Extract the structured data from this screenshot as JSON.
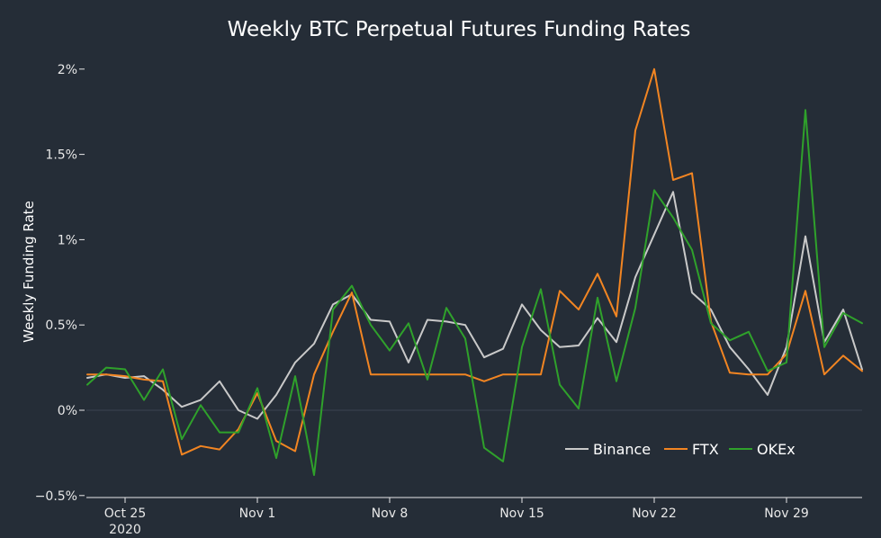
{
  "chart_data": {
    "type": "line",
    "title": "Weekly BTC Perpetual Futures Funding Rates",
    "xlabel": "",
    "ylabel": "Weekly Funding Rate",
    "ylim": [
      -0.5,
      2.0
    ],
    "y_ticks": [
      -0.5,
      0,
      0.5,
      1,
      1.5,
      2
    ],
    "y_tick_labels": [
      "−0.5%",
      "0%",
      "0.5%",
      "1%",
      "1.5%",
      "2%"
    ],
    "x_start": "2020-10-23",
    "x_step_days": 1,
    "x_ticks": [
      {
        "date": "2020-10-25",
        "label": "Oct 25",
        "sub": "2020"
      },
      {
        "date": "2020-11-01",
        "label": "Nov 1",
        "sub": ""
      },
      {
        "date": "2020-11-08",
        "label": "Nov 8",
        "sub": ""
      },
      {
        "date": "2020-11-15",
        "label": "Nov 15",
        "sub": ""
      },
      {
        "date": "2020-11-22",
        "label": "Nov 22",
        "sub": ""
      },
      {
        "date": "2020-11-29",
        "label": "Nov 29",
        "sub": ""
      }
    ],
    "legend_position": "bottom-right",
    "series": [
      {
        "name": "Binance",
        "color": "#c9c9c9",
        "values": [
          0.19,
          0.21,
          0.19,
          0.2,
          0.12,
          0.02,
          0.06,
          0.17,
          0.0,
          -0.05,
          0.09,
          0.28,
          0.39,
          0.62,
          0.68,
          0.53,
          0.52,
          0.28,
          0.53,
          0.52,
          0.5,
          0.31,
          0.36,
          0.62,
          0.47,
          0.37,
          0.38,
          0.54,
          0.4,
          0.78,
          1.03,
          1.28,
          0.69,
          0.59,
          0.37,
          0.24,
          0.09,
          0.37,
          1.02,
          0.4,
          0.59,
          0.24
        ]
      },
      {
        "name": "FTX",
        "color": "#f28522",
        "values": [
          0.21,
          0.21,
          0.2,
          0.18,
          0.17,
          -0.26,
          -0.21,
          -0.23,
          -0.11,
          0.1,
          -0.18,
          -0.24,
          0.21,
          0.46,
          0.69,
          0.21,
          0.21,
          0.21,
          0.21,
          0.21,
          0.21,
          0.17,
          0.21,
          0.21,
          0.21,
          0.7,
          0.59,
          0.8,
          0.55,
          1.64,
          2.0,
          1.35,
          1.39,
          0.52,
          0.22,
          0.21,
          0.21,
          0.33,
          0.7,
          0.21,
          0.32,
          0.23
        ]
      },
      {
        "name": "OKEx",
        "color": "#2fa12b",
        "values": [
          0.15,
          0.25,
          0.24,
          0.06,
          0.24,
          -0.17,
          0.03,
          -0.13,
          -0.13,
          0.13,
          -0.28,
          0.2,
          -0.38,
          0.59,
          0.73,
          0.5,
          0.35,
          0.51,
          0.18,
          0.6,
          0.42,
          -0.22,
          -0.3,
          0.37,
          0.71,
          0.15,
          0.01,
          0.66,
          0.17,
          0.6,
          1.29,
          1.13,
          0.94,
          0.51,
          0.41,
          0.46,
          0.23,
          0.28,
          1.76,
          0.37,
          0.57,
          0.51
        ]
      }
    ]
  }
}
